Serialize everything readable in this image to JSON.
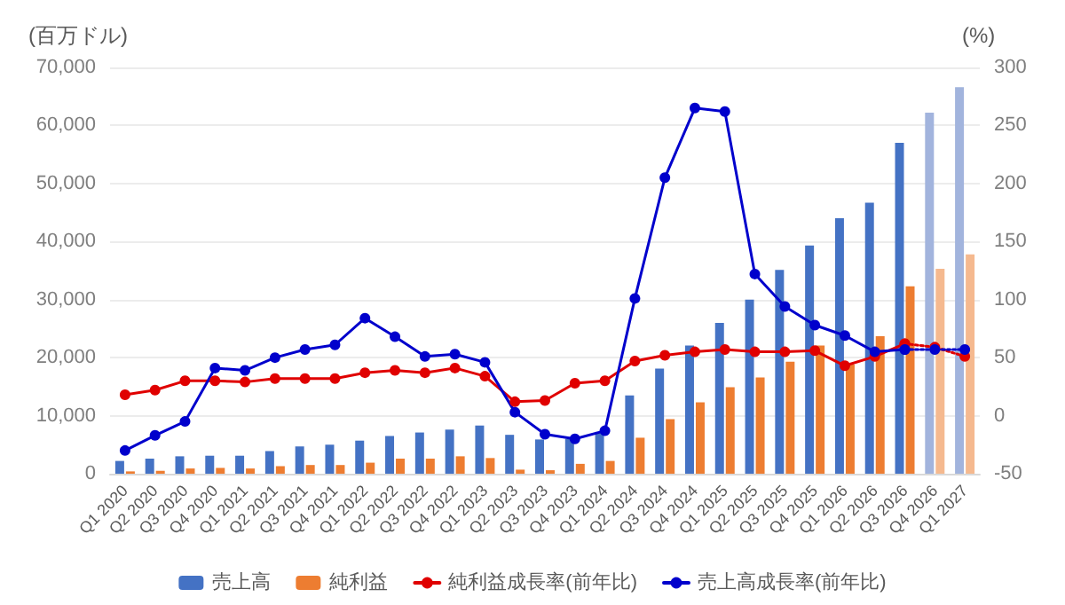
{
  "chart_data": {
    "type": "bar",
    "ylabel": "(百万ドル)",
    "y2label": "(%)",
    "categories": [
      "Q1 2020",
      "Q2 2020",
      "Q3 2020",
      "Q4 2020",
      "Q1 2021",
      "Q2 2021",
      "Q3 2021",
      "Q4 2021",
      "Q1 2022",
      "Q2 2022",
      "Q3 2022",
      "Q4 2022",
      "Q1 2023",
      "Q2 2023",
      "Q3 2023",
      "Q4 2023",
      "Q1 2024",
      "Q2 2024",
      "Q3 2024",
      "Q4 2024",
      "Q1 2025",
      "Q2 2025",
      "Q3 2025",
      "Q4 2025",
      "Q1 2026",
      "Q2 2026",
      "Q3 2026",
      "Q4 2026",
      "Q1 2027"
    ],
    "series": [
      {
        "name": "売上高",
        "color": "#4472c4",
        "colors": [
          "#4472c4",
          "#4472c4",
          "#4472c4",
          "#4472c4",
          "#4472c4",
          "#4472c4",
          "#4472c4",
          "#4472c4",
          "#4472c4",
          "#4472c4",
          "#4472c4",
          "#4472c4",
          "#4472c4",
          "#4472c4",
          "#4472c4",
          "#4472c4",
          "#4472c4",
          "#4472c4",
          "#4472c4",
          "#4472c4",
          "#4472c4",
          "#4472c4",
          "#4472c4",
          "#4472c4",
          "#4472c4",
          "#4472c4",
          "#4472c4",
          "#a2b4dd",
          "#a2b4dd"
        ],
        "values": [
          2200,
          2600,
          3000,
          3100,
          3100,
          3900,
          4700,
          5000,
          5700,
          6500,
          7100,
          7600,
          8300,
          6700,
          5900,
          6000,
          7200,
          13500,
          18100,
          22100,
          26000,
          30000,
          35100,
          39300,
          44000,
          46700,
          57000,
          62200,
          66600
        ]
      },
      {
        "name": "純利益",
        "color": "#ed7d31",
        "colors": [
          "#ed7d31",
          "#ed7d31",
          "#ed7d31",
          "#ed7d31",
          "#ed7d31",
          "#ed7d31",
          "#ed7d31",
          "#ed7d31",
          "#ed7d31",
          "#ed7d31",
          "#ed7d31",
          "#ed7d31",
          "#ed7d31",
          "#ed7d31",
          "#ed7d31",
          "#ed7d31",
          "#ed7d31",
          "#ed7d31",
          "#ed7d31",
          "#ed7d31",
          "#ed7d31",
          "#ed7d31",
          "#ed7d31",
          "#ed7d31",
          "#ed7d31",
          "#ed7d31",
          "#ed7d31",
          "#f5b98f",
          "#f5b98f"
        ],
        "values": [
          400,
          500,
          900,
          1000,
          900,
          1300,
          1500,
          1500,
          1900,
          2600,
          2600,
          3000,
          2700,
          700,
          600,
          1700,
          2200,
          6200,
          9400,
          12300,
          14900,
          16600,
          19300,
          22100,
          18800,
          23700,
          32300,
          35300,
          37800
        ]
      },
      {
        "name": "純利益成長率(前年比)",
        "type": "line",
        "axis": "y2",
        "color": "#e00000",
        "marker": "circle",
        "line_style": "solid",
        "values": [
          18,
          22,
          30,
          30,
          29,
          32,
          32,
          32,
          37,
          39,
          37,
          41,
          34,
          12,
          13,
          28,
          30,
          47,
          52,
          55,
          57,
          55,
          55,
          56,
          43,
          51,
          62,
          null,
          null
        ]
      },
      {
        "name": "売上高成長率(前年比)",
        "type": "line",
        "axis": "y2",
        "color": "#0000cc",
        "marker": "circle",
        "line_style": "solid",
        "values": [
          -30,
          -17,
          -5,
          41,
          39,
          50,
          57,
          61,
          84,
          68,
          51,
          53,
          46,
          3,
          -16,
          -20,
          -13,
          101,
          205,
          265,
          262,
          122,
          94,
          78,
          69,
          55,
          57,
          null,
          null
        ]
      },
      {
        "type": "line",
        "axis": "y2",
        "color": "#e00000",
        "marker": "circle",
        "line_style": "dotted",
        "values": [
          null,
          null,
          null,
          null,
          null,
          null,
          null,
          null,
          null,
          null,
          null,
          null,
          null,
          null,
          null,
          null,
          null,
          null,
          null,
          null,
          null,
          null,
          null,
          null,
          null,
          null,
          62,
          59,
          51
        ]
      },
      {
        "type": "line",
        "axis": "y2",
        "color": "#0000cc",
        "marker": "circle",
        "line_style": "dotted",
        "values": [
          null,
          null,
          null,
          null,
          null,
          null,
          null,
          null,
          null,
          null,
          null,
          null,
          null,
          null,
          null,
          null,
          null,
          null,
          null,
          null,
          null,
          null,
          null,
          null,
          null,
          null,
          57,
          57,
          57
        ]
      }
    ],
    "ylim": [
      0,
      70000
    ],
    "yticks": [
      0,
      {
        "value": 10000,
        "label": "10,000"
      },
      {
        "value": 20000,
        "label": "20,000"
      },
      {
        "value": 30000,
        "label": "30,000"
      },
      {
        "value": 40000,
        "label": "40,000"
      },
      {
        "value": 50000,
        "label": "50,000"
      },
      {
        "value": 60000,
        "label": "60,000"
      },
      {
        "value": 70000,
        "label": "70,000"
      }
    ],
    "y2lim": [
      -50,
      300
    ],
    "y2ticks": [
      -50,
      0,
      50,
      100,
      150,
      200,
      250,
      300
    ],
    "grid": "y",
    "legend": "bottom"
  }
}
